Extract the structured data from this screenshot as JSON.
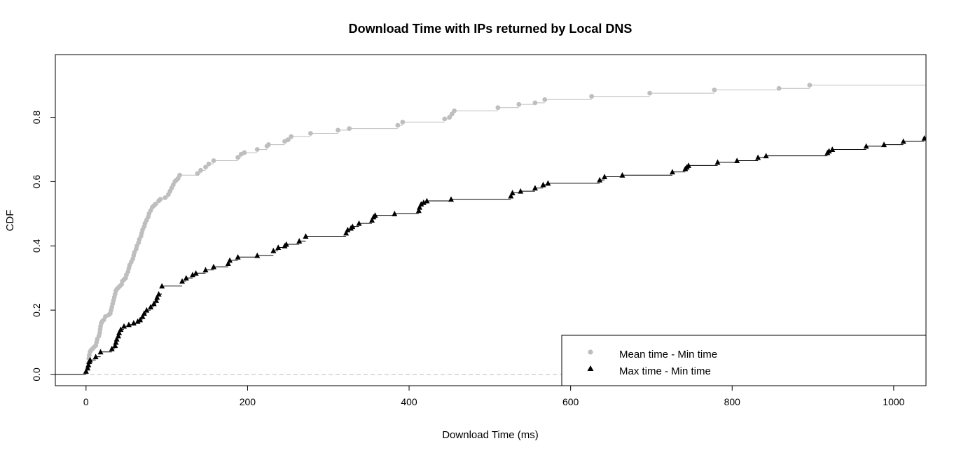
{
  "chart_data": {
    "type": "line",
    "step": true,
    "title": "Download Time with IPs returned by Local DNS",
    "xlabel": "Download Time (ms)",
    "ylabel": "CDF",
    "xlim": [
      -38,
      1040
    ],
    "ylim": [
      -0.035,
      0.995
    ],
    "x_ticks": [
      0,
      200,
      400,
      600,
      800,
      1000
    ],
    "x_tick_labels": [
      "0",
      "200",
      "400",
      "600",
      "800",
      "1000"
    ],
    "y_ticks": [
      0.0,
      0.2,
      0.4,
      0.6,
      0.8
    ],
    "y_tick_labels": [
      "0.0",
      "0.2",
      "0.4",
      "0.6",
      "0.8"
    ],
    "reference_line_y": 0,
    "legend": {
      "position": "bottom-right"
    },
    "series": [
      {
        "name": "Mean time - Min time",
        "color": "#bebebe",
        "marker": "circle",
        "points": [
          [
            2,
            0.02
          ],
          [
            3,
            0.035
          ],
          [
            3.5,
            0.05
          ],
          [
            4,
            0.06
          ],
          [
            5,
            0.07
          ],
          [
            6,
            0.075
          ],
          [
            8,
            0.08
          ],
          [
            10,
            0.085
          ],
          [
            12,
            0.09
          ],
          [
            13,
            0.1
          ],
          [
            14,
            0.11
          ],
          [
            16,
            0.12
          ],
          [
            17,
            0.13
          ],
          [
            17.5,
            0.14
          ],
          [
            18,
            0.15
          ],
          [
            19,
            0.16
          ],
          [
            20,
            0.165
          ],
          [
            22,
            0.17
          ],
          [
            24,
            0.18
          ],
          [
            28,
            0.185
          ],
          [
            30,
            0.19
          ],
          [
            31,
            0.2
          ],
          [
            32,
            0.21
          ],
          [
            33,
            0.22
          ],
          [
            34,
            0.23
          ],
          [
            35,
            0.24
          ],
          [
            36,
            0.25
          ],
          [
            37,
            0.26
          ],
          [
            38,
            0.265
          ],
          [
            40,
            0.27
          ],
          [
            42,
            0.275
          ],
          [
            44,
            0.28
          ],
          [
            45,
            0.29
          ],
          [
            47,
            0.295
          ],
          [
            49,
            0.3
          ],
          [
            50,
            0.31
          ],
          [
            52,
            0.32
          ],
          [
            53,
            0.33
          ],
          [
            54,
            0.34
          ],
          [
            56,
            0.35
          ],
          [
            58,
            0.36
          ],
          [
            59,
            0.37
          ],
          [
            60,
            0.38
          ],
          [
            62,
            0.39
          ],
          [
            63,
            0.4
          ],
          [
            65,
            0.41
          ],
          [
            66,
            0.42
          ],
          [
            68,
            0.43
          ],
          [
            69,
            0.44
          ],
          [
            70,
            0.45
          ],
          [
            72,
            0.46
          ],
          [
            73,
            0.47
          ],
          [
            75,
            0.48
          ],
          [
            77,
            0.49
          ],
          [
            78,
            0.5
          ],
          [
            80,
            0.51
          ],
          [
            82,
            0.52
          ],
          [
            84,
            0.525
          ],
          [
            86,
            0.53
          ],
          [
            90,
            0.54
          ],
          [
            92,
            0.545
          ],
          [
            98,
            0.55
          ],
          [
            102,
            0.56
          ],
          [
            104,
            0.57
          ],
          [
            106,
            0.58
          ],
          [
            108,
            0.59
          ],
          [
            110,
            0.6
          ],
          [
            112,
            0.605
          ],
          [
            114,
            0.61
          ],
          [
            116,
            0.62
          ],
          [
            138,
            0.625
          ],
          [
            142,
            0.635
          ],
          [
            148,
            0.645
          ],
          [
            152,
            0.655
          ],
          [
            158,
            0.665
          ],
          [
            188,
            0.675
          ],
          [
            192,
            0.685
          ],
          [
            196,
            0.69
          ],
          [
            212,
            0.7
          ],
          [
            224,
            0.71
          ],
          [
            226,
            0.715
          ],
          [
            246,
            0.725
          ],
          [
            250,
            0.73
          ],
          [
            254,
            0.74
          ],
          [
            278,
            0.75
          ],
          [
            312,
            0.76
          ],
          [
            326,
            0.765
          ],
          [
            386,
            0.775
          ],
          [
            392,
            0.785
          ],
          [
            444,
            0.795
          ],
          [
            450,
            0.8
          ],
          [
            453,
            0.81
          ],
          [
            456,
            0.82
          ],
          [
            510,
            0.83
          ],
          [
            536,
            0.84
          ],
          [
            556,
            0.845
          ],
          [
            568,
            0.855
          ],
          [
            626,
            0.865
          ],
          [
            698,
            0.875
          ],
          [
            778,
            0.885
          ],
          [
            858,
            0.89
          ],
          [
            896,
            0.9
          ]
        ],
        "x_end": 1040
      },
      {
        "name": "Max time - Min time",
        "color": "#000000",
        "marker": "triangle",
        "points": [
          [
            0,
            0.01
          ],
          [
            2,
            0.02
          ],
          [
            3,
            0.03
          ],
          [
            4,
            0.04
          ],
          [
            5,
            0.045
          ],
          [
            12,
            0.055
          ],
          [
            18,
            0.07
          ],
          [
            32,
            0.08
          ],
          [
            36,
            0.09
          ],
          [
            37,
            0.1
          ],
          [
            38,
            0.11
          ],
          [
            40,
            0.12
          ],
          [
            41,
            0.13
          ],
          [
            43,
            0.14
          ],
          [
            47,
            0.15
          ],
          [
            53,
            0.155
          ],
          [
            59,
            0.16
          ],
          [
            64,
            0.165
          ],
          [
            67,
            0.17
          ],
          [
            70,
            0.18
          ],
          [
            72,
            0.19
          ],
          [
            75,
            0.2
          ],
          [
            80,
            0.21
          ],
          [
            84,
            0.22
          ],
          [
            87,
            0.23
          ],
          [
            88,
            0.24
          ],
          [
            90,
            0.25
          ],
          [
            94,
            0.275
          ],
          [
            119,
            0.29
          ],
          [
            124,
            0.3
          ],
          [
            132,
            0.31
          ],
          [
            136,
            0.315
          ],
          [
            148,
            0.325
          ],
          [
            158,
            0.335
          ],
          [
            176,
            0.345
          ],
          [
            178,
            0.355
          ],
          [
            188,
            0.365
          ],
          [
            212,
            0.37
          ],
          [
            232,
            0.385
          ],
          [
            238,
            0.395
          ],
          [
            246,
            0.4
          ],
          [
            248,
            0.405
          ],
          [
            264,
            0.415
          ],
          [
            272,
            0.43
          ],
          [
            322,
            0.44
          ],
          [
            324,
            0.45
          ],
          [
            328,
            0.455
          ],
          [
            330,
            0.46
          ],
          [
            338,
            0.47
          ],
          [
            354,
            0.48
          ],
          [
            356,
            0.49
          ],
          [
            358,
            0.495
          ],
          [
            382,
            0.5
          ],
          [
            412,
            0.51
          ],
          [
            413,
            0.52
          ],
          [
            415,
            0.53
          ],
          [
            418,
            0.535
          ],
          [
            422,
            0.54
          ],
          [
            452,
            0.545
          ],
          [
            526,
            0.555
          ],
          [
            528,
            0.565
          ],
          [
            538,
            0.57
          ],
          [
            556,
            0.58
          ],
          [
            566,
            0.59
          ],
          [
            572,
            0.595
          ],
          [
            636,
            0.605
          ],
          [
            642,
            0.615
          ],
          [
            664,
            0.62
          ],
          [
            726,
            0.63
          ],
          [
            742,
            0.64
          ],
          [
            744,
            0.645
          ],
          [
            746,
            0.65
          ],
          [
            782,
            0.66
          ],
          [
            806,
            0.665
          ],
          [
            832,
            0.675
          ],
          [
            842,
            0.68
          ],
          [
            918,
            0.69
          ],
          [
            920,
            0.695
          ],
          [
            924,
            0.7
          ],
          [
            966,
            0.71
          ],
          [
            988,
            0.715
          ],
          [
            1012,
            0.725
          ],
          [
            1038,
            0.735
          ]
        ],
        "x_end": 1040
      }
    ]
  }
}
